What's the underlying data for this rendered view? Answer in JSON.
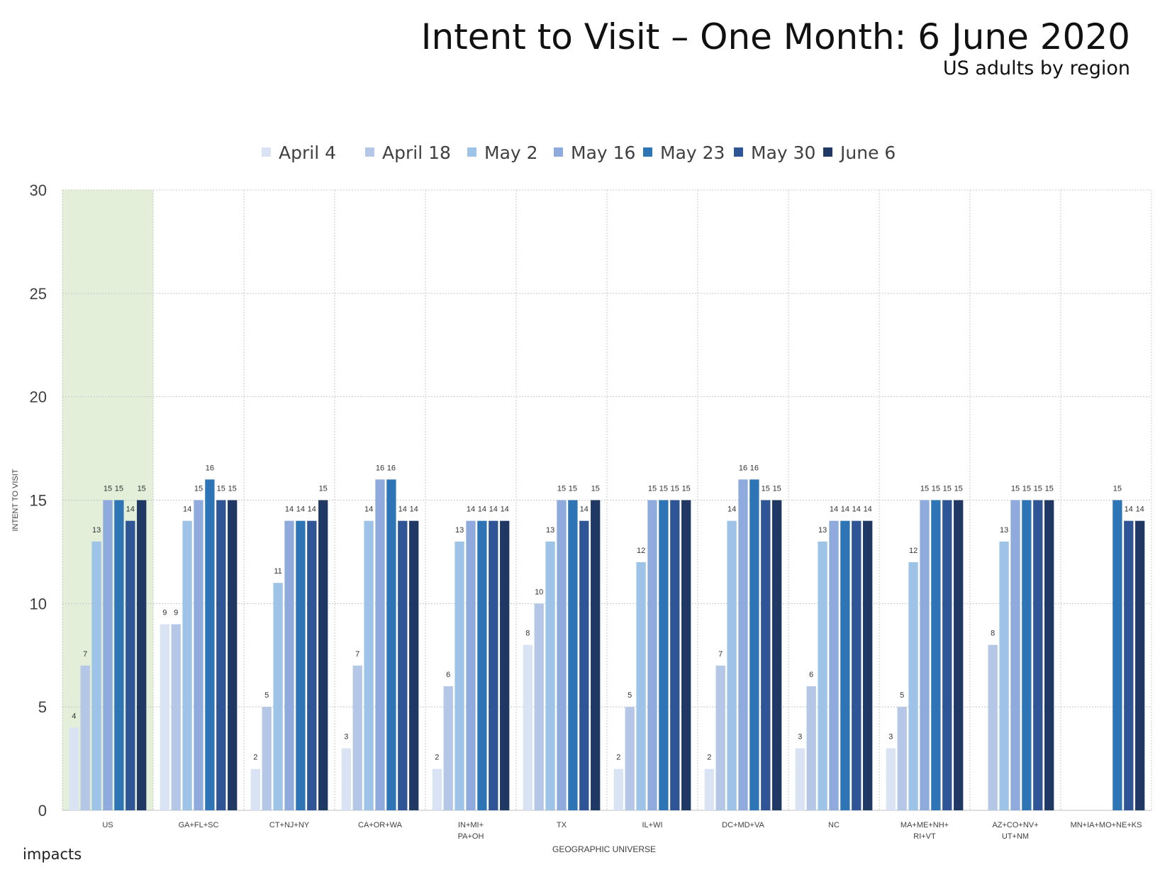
{
  "header": {
    "title": "Intent to Visit – One Month: 6 June 2020",
    "subtitle": "US adults by region"
  },
  "brand": {
    "label": "impacts"
  },
  "chart_data": {
    "type": "bar",
    "title": "Intent to Visit – One Month: 6 June 2020",
    "subtitle": "US adults by region",
    "xlabel": "GEOGRAPHIC UNIVERSE",
    "ylabel": "INTENT TO VISIT",
    "ylim": [
      0,
      30
    ],
    "yticks": [
      0,
      5,
      10,
      15,
      20,
      25,
      30
    ],
    "grid": true,
    "legend_position": "top-center",
    "highlight_category": "US",
    "highlight_color": "#e3efd9",
    "categories": [
      "US",
      "GA+FL+SC",
      "CT+NJ+NY",
      "CA+OR+WA",
      "IN+MI+\nPA+OH",
      "TX",
      "IL+WI",
      "DC+MD+VA",
      "NC",
      "MA+ME+NH+\nRI+VT",
      "AZ+CO+NV+\nUT+NM",
      "MN+IA+MO+NE+KS"
    ],
    "series": [
      {
        "name": "April 4",
        "color": "#d9e3f3",
        "values": [
          4,
          9,
          2,
          3,
          2,
          8,
          2,
          2,
          3,
          3,
          null,
          null
        ]
      },
      {
        "name": "April 18",
        "color": "#b4c7e7",
        "values": [
          7,
          9,
          5,
          7,
          6,
          10,
          5,
          7,
          6,
          5,
          8,
          null
        ]
      },
      {
        "name": "May 2",
        "color": "#9dc3e6",
        "values": [
          13,
          14,
          11,
          14,
          13,
          13,
          12,
          14,
          13,
          12,
          13,
          null
        ]
      },
      {
        "name": "May 16",
        "color": "#8faadc",
        "values": [
          15,
          15,
          14,
          16,
          14,
          15,
          15,
          16,
          14,
          15,
          15,
          null
        ]
      },
      {
        "name": "May 23",
        "color": "#2e75b6",
        "values": [
          15,
          16,
          14,
          16,
          14,
          15,
          15,
          16,
          14,
          15,
          15,
          15
        ]
      },
      {
        "name": "May 30",
        "color": "#2f5597",
        "values": [
          14,
          15,
          14,
          14,
          14,
          14,
          15,
          15,
          14,
          15,
          15,
          14
        ]
      },
      {
        "name": "June 6",
        "color": "#203864",
        "values": [
          15,
          15,
          15,
          14,
          14,
          15,
          15,
          15,
          14,
          15,
          15,
          14
        ]
      }
    ]
  }
}
